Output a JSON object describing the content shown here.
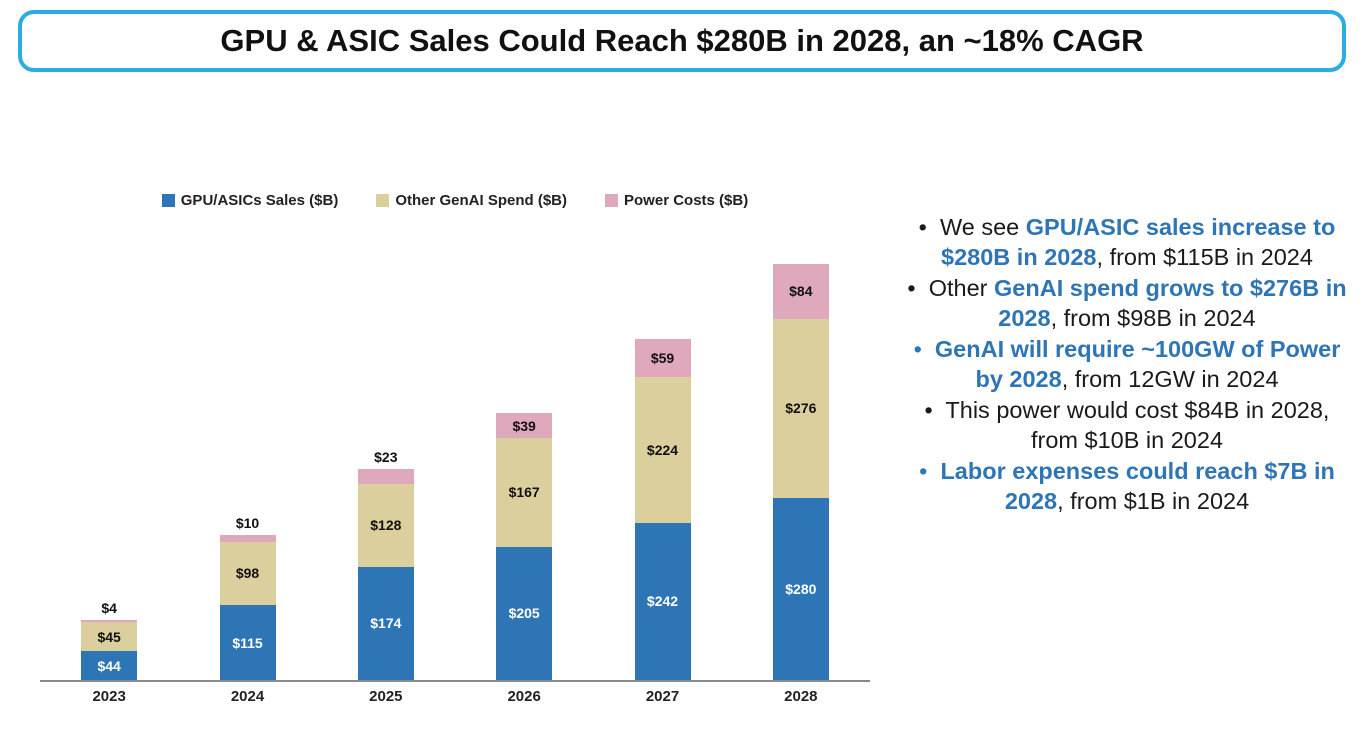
{
  "title": "GPU & ASIC Sales Could Reach $280B in 2028, an ~18% CAGR",
  "colors": {
    "blue": "#2E75B6",
    "tan": "#DCCF9E",
    "pink": "#E0A8BC",
    "title_border": "#2BACE2",
    "accent_text": "#2E75B6",
    "axis": "#8a8a8a"
  },
  "chart_data": {
    "type": "bar",
    "stacked": true,
    "title": "",
    "xlabel": "",
    "ylabel": "",
    "grid": false,
    "legend_position": "top",
    "ylim": [
      0,
      660
    ],
    "categories": [
      "2023",
      "2024",
      "2025",
      "2026",
      "2027",
      "2028"
    ],
    "series": [
      {
        "name": "GPU/ASICs Sales ($B)",
        "color_key": "blue",
        "values": [
          44,
          115,
          174,
          205,
          242,
          280
        ],
        "labels": [
          "$44",
          "$115",
          "$174",
          "$205",
          "$242",
          "$280"
        ]
      },
      {
        "name": "Other GenAI Spend ($B)",
        "color_key": "tan",
        "values": [
          45,
          98,
          128,
          167,
          224,
          276
        ],
        "labels": [
          "$45",
          "$98",
          "$128",
          "$167",
          "$224",
          "$276"
        ]
      },
      {
        "name": "Power Costs ($B)",
        "color_key": "pink",
        "values": [
          4,
          10,
          23,
          39,
          59,
          84
        ],
        "labels": [
          "$4",
          "$10",
          "$23",
          "$39",
          "$59",
          "$84"
        ]
      }
    ]
  },
  "bullets": [
    {
      "marker": "plain",
      "segments": [
        {
          "text": "We see ",
          "style": "plain"
        },
        {
          "text": "GPU/ASIC sales increase to $280B in 2028",
          "style": "accent"
        },
        {
          "text": ", from $115B in 2024",
          "style": "plain"
        }
      ]
    },
    {
      "marker": "plain",
      "segments": [
        {
          "text": "Other ",
          "style": "plain"
        },
        {
          "text": "GenAI spend grows to $276B in 2028",
          "style": "accent"
        },
        {
          "text": ", from $98B in 2024",
          "style": "plain"
        }
      ]
    },
    {
      "marker": "accent",
      "segments": [
        {
          "text": "GenAI will require ~100GW of Power by 2028",
          "style": "accent"
        },
        {
          "text": ", from 12GW in 2024",
          "style": "plain"
        }
      ]
    },
    {
      "marker": "plain",
      "segments": [
        {
          "text": "This power would cost $84B in 2028, from $10B in 2024",
          "style": "plain"
        }
      ]
    },
    {
      "marker": "accent",
      "segments": [
        {
          "text": "Labor expenses could reach $7B in 2028",
          "style": "accent"
        },
        {
          "text": ", from $1B in 2024",
          "style": "plain"
        }
      ]
    }
  ]
}
